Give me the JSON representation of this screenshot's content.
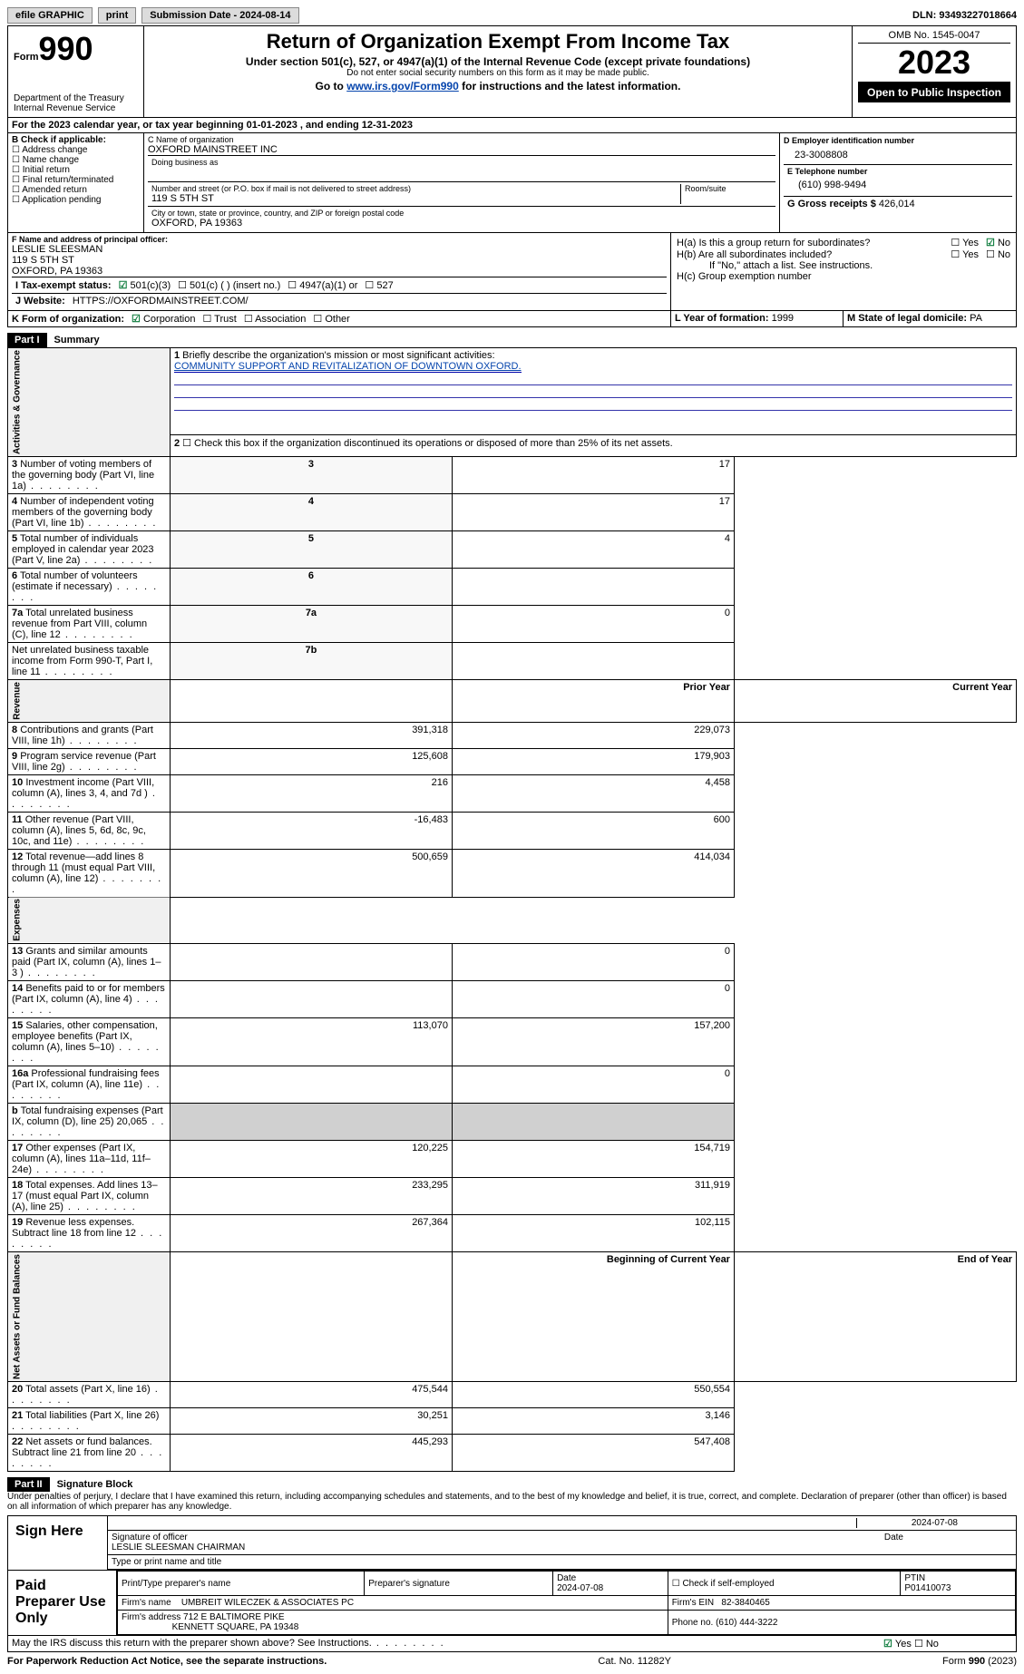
{
  "topbar": {
    "efile": "efile GRAPHIC",
    "print": "print",
    "submission": "Submission Date - 2024-08-14",
    "dln": "DLN: 93493227018664"
  },
  "header": {
    "form_label": "Form",
    "form_no": "990",
    "dept": "Department of the Treasury",
    "irs": "Internal Revenue Service",
    "title": "Return of Organization Exempt From Income Tax",
    "subtitle": "Under section 501(c), 527, or 4947(a)(1) of the Internal Revenue Code (except private foundations)",
    "ssn": "Do not enter social security numbers on this form as it may be made public.",
    "goto_pre": "Go to ",
    "goto_link": "www.irs.gov/Form990",
    "goto_post": " for instructions and the latest information.",
    "omb": "OMB No. 1545-0047",
    "year": "2023",
    "open": "Open to Public Inspection"
  },
  "line_a": "For the 2023 calendar year, or tax year beginning 01-01-2023    , and ending 12-31-2023",
  "section_b": {
    "hdr": "B Check if applicable:",
    "items": [
      "Address change",
      "Name change",
      "Initial return",
      "Final return/terminated",
      "Amended return",
      "Application pending"
    ]
  },
  "section_c": {
    "name_lbl": "C Name of organization",
    "name": "OXFORD MAINSTREET INC",
    "dba_lbl": "Doing business as",
    "street_lbl": "Number and street (or P.O. box if mail is not delivered to street address)",
    "room_lbl": "Room/suite",
    "street": "119 S 5TH ST",
    "city_lbl": "City or town, state or province, country, and ZIP or foreign postal code",
    "city": "OXFORD, PA  19363"
  },
  "section_d": {
    "lbl": "D Employer identification number",
    "val": "23-3008808"
  },
  "section_e": {
    "lbl": "E Telephone number",
    "val": "(610) 998-9494"
  },
  "section_g": {
    "lbl": "G Gross receipts $",
    "val": "426,014"
  },
  "section_f": {
    "lbl": "F  Name and address of principal officer:",
    "name": "LESLIE SLEESMAN",
    "addr1": "119 S 5TH ST",
    "addr2": "OXFORD, PA  19363"
  },
  "section_h": {
    "a": "H(a)  Is this a group return for subordinates?",
    "a_no_checked": true,
    "b": "H(b)  Are all subordinates included?",
    "b_note": "If \"No,\" attach a list. See instructions.",
    "c": "H(c)  Group exemption number"
  },
  "row_i": {
    "lbl": "I   Tax-exempt status:",
    "c1": "501(c)(3)",
    "c2": "501(c) (  ) (insert no.)",
    "c3": "4947(a)(1) or",
    "c4": "527"
  },
  "row_j": {
    "lbl": "J   Website:",
    "val": "HTTPS://OXFORDMAINSTREET.COM/"
  },
  "row_k": {
    "lbl": "K Form of organization:",
    "c1": "Corporation",
    "c2": "Trust",
    "c3": "Association",
    "c4": "Other"
  },
  "row_l": {
    "lbl": "L Year of formation:",
    "val": "1999"
  },
  "row_m": {
    "lbl": "M State of legal domicile:",
    "val": "PA"
  },
  "part1": {
    "hdr": "Part I",
    "title": "Summary"
  },
  "summary": {
    "q1": "Briefly describe the organization's mission or most significant activities:",
    "mission": "COMMUNITY SUPPORT AND REVITALIZATION OF DOWNTOWN OXFORD.",
    "q2": "Check this box      if the organization discontinued its operations or disposed of more than 25% of its net assets.",
    "rows_gov": [
      {
        "n": "3",
        "t": "Number of voting members of the governing body (Part VI, line 1a)",
        "c": "3",
        "v": "17"
      },
      {
        "n": "4",
        "t": "Number of independent voting members of the governing body (Part VI, line 1b)",
        "c": "4",
        "v": "17"
      },
      {
        "n": "5",
        "t": "Total number of individuals employed in calendar year 2023 (Part V, line 2a)",
        "c": "5",
        "v": "4"
      },
      {
        "n": "6",
        "t": "Total number of volunteers (estimate if necessary)",
        "c": "6",
        "v": ""
      },
      {
        "n": "7a",
        "t": "Total unrelated business revenue from Part VIII, column (C), line 12",
        "c": "7a",
        "v": "0"
      },
      {
        "n": "",
        "t": "Net unrelated business taxable income from Form 990-T, Part I, line 11",
        "c": "7b",
        "v": ""
      }
    ],
    "col_prior": "Prior Year",
    "col_current": "Current Year",
    "rows_rev": [
      {
        "n": "8",
        "t": "Contributions and grants (Part VIII, line 1h)",
        "p": "391,318",
        "c": "229,073"
      },
      {
        "n": "9",
        "t": "Program service revenue (Part VIII, line 2g)",
        "p": "125,608",
        "c": "179,903"
      },
      {
        "n": "10",
        "t": "Investment income (Part VIII, column (A), lines 3, 4, and 7d )",
        "p": "216",
        "c": "4,458"
      },
      {
        "n": "11",
        "t": "Other revenue (Part VIII, column (A), lines 5, 6d, 8c, 9c, 10c, and 11e)",
        "p": "-16,483",
        "c": "600"
      },
      {
        "n": "12",
        "t": "Total revenue—add lines 8 through 11 (must equal Part VIII, column (A), line 12)",
        "p": "500,659",
        "c": "414,034"
      }
    ],
    "rows_exp": [
      {
        "n": "13",
        "t": "Grants and similar amounts paid (Part IX, column (A), lines 1–3 )",
        "p": "",
        "c": "0"
      },
      {
        "n": "14",
        "t": "Benefits paid to or for members (Part IX, column (A), line 4)",
        "p": "",
        "c": "0"
      },
      {
        "n": "15",
        "t": "Salaries, other compensation, employee benefits (Part IX, column (A), lines 5–10)",
        "p": "113,070",
        "c": "157,200"
      },
      {
        "n": "16a",
        "t": "Professional fundraising fees (Part IX, column (A), line 11e)",
        "p": "",
        "c": "0"
      },
      {
        "n": "b",
        "t": "Total fundraising expenses (Part IX, column (D), line 25) 20,065",
        "p": "GREY",
        "c": "GREY"
      },
      {
        "n": "17",
        "t": "Other expenses (Part IX, column (A), lines 11a–11d, 11f–24e)",
        "p": "120,225",
        "c": "154,719"
      },
      {
        "n": "18",
        "t": "Total expenses. Add lines 13–17 (must equal Part IX, column (A), line 25)",
        "p": "233,295",
        "c": "311,919"
      },
      {
        "n": "19",
        "t": "Revenue less expenses. Subtract line 18 from line 12",
        "p": "267,364",
        "c": "102,115"
      }
    ],
    "col_begin": "Beginning of Current Year",
    "col_end": "End of Year",
    "rows_net": [
      {
        "n": "20",
        "t": "Total assets (Part X, line 16)",
        "p": "475,544",
        "c": "550,554"
      },
      {
        "n": "21",
        "t": "Total liabilities (Part X, line 26)",
        "p": "30,251",
        "c": "3,146"
      },
      {
        "n": "22",
        "t": "Net assets or fund balances. Subtract line 21 from line 20",
        "p": "445,293",
        "c": "547,408"
      }
    ],
    "cat_gov": "Activities & Governance",
    "cat_rev": "Revenue",
    "cat_exp": "Expenses",
    "cat_net": "Net Assets or Fund Balances"
  },
  "part2": {
    "hdr": "Part II",
    "title": "Signature Block"
  },
  "sig": {
    "penalty": "Under penalties of perjury, I declare that I have examined this return, including accompanying schedules and statements, and to the best of my knowledge and belief, it is true, correct, and complete. Declaration of preparer (other than officer) is based on all information of which preparer has any knowledge.",
    "sign_here": "Sign Here",
    "date": "2024-07-08",
    "sig_lbl": "Signature of officer",
    "officer": "LESLIE SLEESMAN  CHAIRMAN",
    "type_lbl": "Type or print name and title",
    "date_lbl": "Date"
  },
  "paid": {
    "lbl": "Paid Preparer Use Only",
    "col_name": "Print/Type preparer's name",
    "col_sig": "Preparer's signature",
    "col_date": "Date",
    "date": "2024-07-08",
    "col_self": "Check        if self-employed",
    "col_ptin": "PTIN",
    "ptin": "P01410073",
    "firm_lbl": "Firm's name",
    "firm": "UMBREIT WILECZEK & ASSOCIATES PC",
    "ein_lbl": "Firm's EIN",
    "ein": "82-3840465",
    "addr_lbl": "Firm's address",
    "addr1": "712 E BALTIMORE PIKE",
    "addr2": "KENNETT SQUARE, PA  19348",
    "phone_lbl": "Phone no.",
    "phone": "(610) 444-3222"
  },
  "discuss": "May the IRS discuss this return with the preparer shown above? See Instructions.",
  "footer": {
    "pra": "For Paperwork Reduction Act Notice, see the separate instructions.",
    "cat": "Cat. No. 11282Y",
    "form": "Form 990 (2023)"
  }
}
